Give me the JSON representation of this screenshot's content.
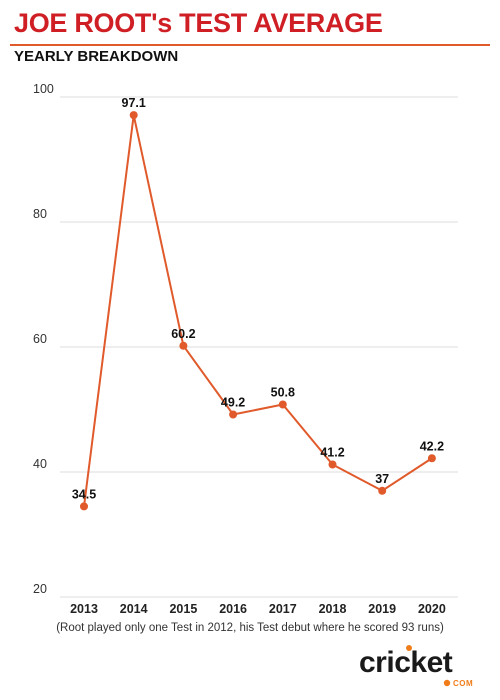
{
  "header": {
    "title": "JOE ROOT's TEST AVERAGE",
    "subtitle": "YEARLY BREAKDOWN"
  },
  "chart_data": {
    "type": "line",
    "title": "JOE ROOT's TEST AVERAGE",
    "subtitle": "YEARLY BREAKDOWN",
    "x": [
      "2013",
      "2014",
      "2015",
      "2016",
      "2017",
      "2018",
      "2019",
      "2020"
    ],
    "series": [
      {
        "values": [
          34.5,
          97.1,
          60.2,
          49.2,
          50.8,
          41.2,
          37,
          42.2
        ]
      }
    ],
    "data_labels": [
      "34.5",
      "97.1",
      "60.2",
      "49.2",
      "50.8",
      "41.2",
      "37",
      "42.2"
    ],
    "yticks": [
      20,
      40,
      60,
      80,
      100
    ],
    "ylim": [
      20,
      100
    ],
    "xlabel": "",
    "ylabel": "",
    "grid": true,
    "line_color": "#e05a2b"
  },
  "footnote": "(Root played only one Test in 2012, his Test debut where he scored 93 runs)",
  "logo": {
    "word": "cricket",
    "suffix": "COM",
    "accent_color": "#f07d1a"
  }
}
